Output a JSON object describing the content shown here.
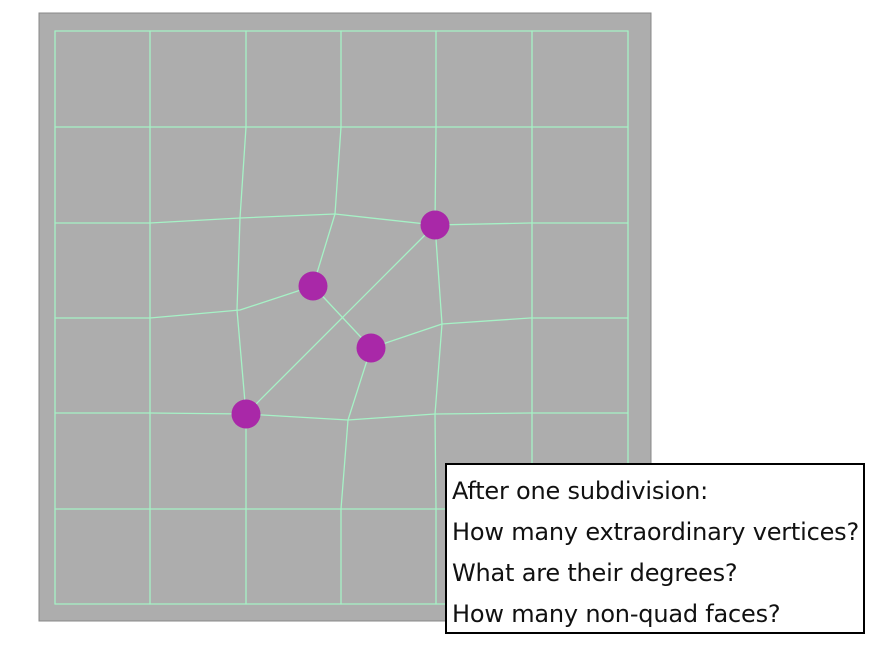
{
  "colors": {
    "canvas_background": "#adadad",
    "canvas_border": "#888888",
    "mesh_edge": "#a6f2c6",
    "extraordinary_vertex": "#a928a8",
    "question_border": "#000000",
    "question_text": "#111111"
  },
  "markers": {
    "icon": "filled-circle",
    "count": 4
  },
  "questions": {
    "line1": "After one subdivision:",
    "line2": "How many extraordinary vertices?",
    "line3": "What are their degrees?",
    "line4": "How many non-quad faces?"
  }
}
